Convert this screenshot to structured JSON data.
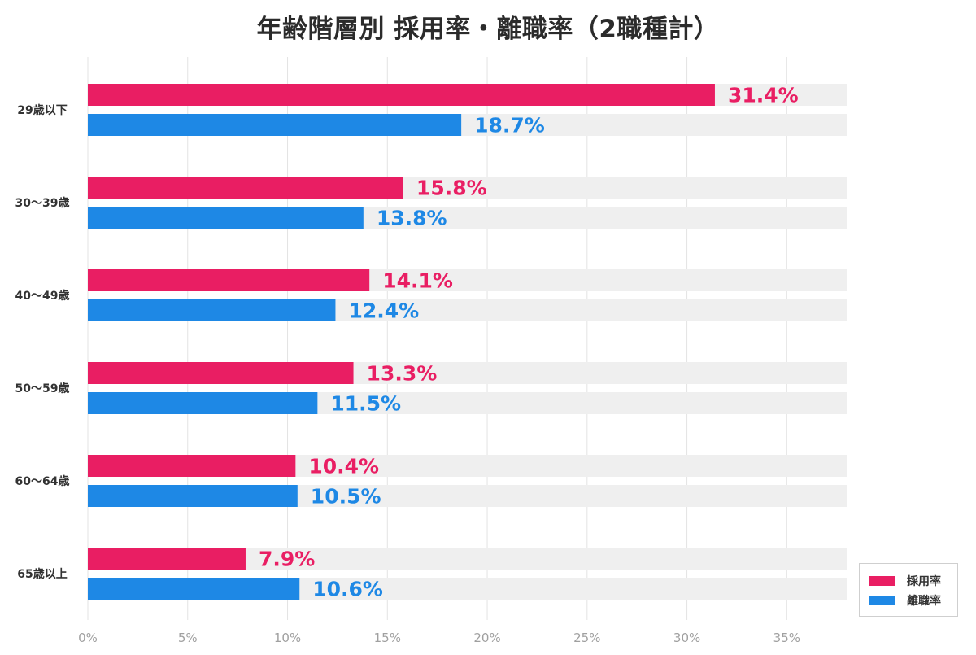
{
  "chart_data": {
    "type": "bar",
    "orientation": "horizontal",
    "title": "年齢階層別 採用率・離職率（2職種計）",
    "categories": [
      "29歳以下",
      "30〜39歳",
      "40〜49歳",
      "50〜59歳",
      "60〜64歳",
      "65歳以上"
    ],
    "series": [
      {
        "name": "採用率",
        "color": "#e91e63",
        "values": [
          31.4,
          15.8,
          14.1,
          13.3,
          10.4,
          7.9
        ]
      },
      {
        "name": "離職率",
        "color": "#1e88e5",
        "values": [
          18.7,
          13.8,
          12.4,
          11.5,
          10.5,
          10.6
        ]
      }
    ],
    "data_labels": [
      [
        "31.4%",
        "15.8%",
        "14.1%",
        "13.3%",
        "10.4%",
        "7.9%"
      ],
      [
        "18.7%",
        "13.8%",
        "12.4%",
        "11.5%",
        "10.5%",
        "10.6%"
      ]
    ],
    "xlim": [
      0,
      38
    ],
    "xticks": [
      0,
      5,
      10,
      15,
      20,
      25,
      30,
      35
    ],
    "xtick_labels": [
      "0%",
      "5%",
      "10%",
      "15%",
      "20%",
      "25%",
      "30%",
      "35%"
    ],
    "track_color": "#efefef",
    "grid": true,
    "legend_position": "bottom-right"
  }
}
